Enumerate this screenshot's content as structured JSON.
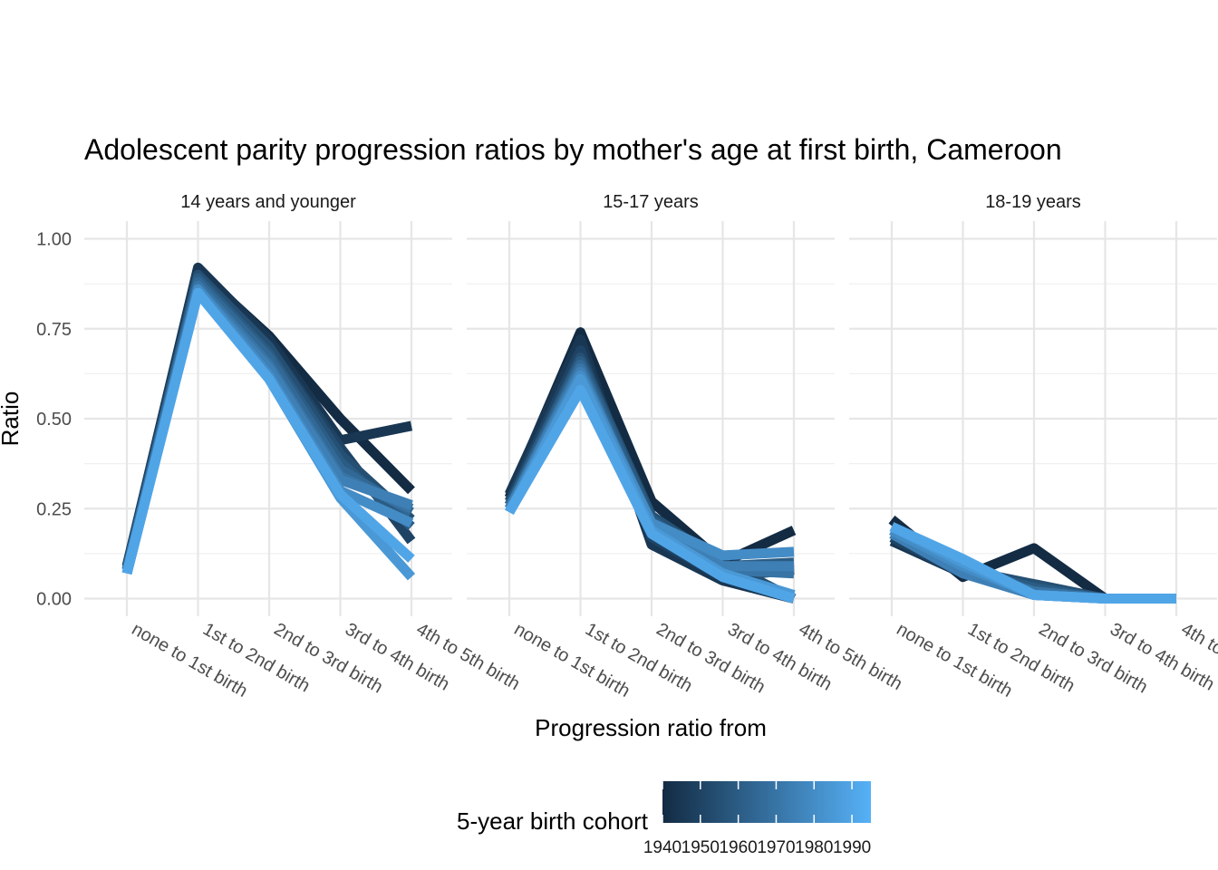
{
  "chart_data": {
    "type": "line",
    "title": "Adolescent parity progression ratios by mother's age at first birth,  Cameroon",
    "xlabel": "Progression ratio from",
    "ylabel": "Ratio",
    "ylim": [
      0,
      1
    ],
    "yticks": [
      "0.00",
      "0.25",
      "0.50",
      "0.75",
      "1.00"
    ],
    "grid": true,
    "categories": [
      "none to 1st birth",
      "1st to 2nd birth",
      "2nd to 3rd birth",
      "3rd to 4th birth",
      "4th to 5th birth"
    ],
    "legend": {
      "title": "5-year birth cohort",
      "position": "bottom",
      "type": "colorbar",
      "ticks": [
        "1940",
        "1950",
        "1960",
        "1970",
        "1980",
        "1990"
      ],
      "range": [
        1940,
        1995
      ],
      "color_low": "#132b43",
      "color_high": "#56b1f7"
    },
    "panels": [
      {
        "label": "14 years and younger",
        "series": [
          {
            "cohort": 1940,
            "values": [
              0.08,
              0.91,
              0.73,
              0.5,
              0.3
            ]
          },
          {
            "cohort": 1945,
            "values": [
              0.09,
              0.92,
              0.72,
              0.44,
              0.48
            ]
          },
          {
            "cohort": 1950,
            "values": [
              0.09,
              0.9,
              0.7,
              0.42,
              0.16
            ]
          },
          {
            "cohort": 1955,
            "values": [
              0.08,
              0.9,
              0.7,
              0.4,
              0.22
            ]
          },
          {
            "cohort": 1960,
            "values": [
              0.08,
              0.89,
              0.68,
              0.38,
              0.2
            ]
          },
          {
            "cohort": 1965,
            "values": [
              0.08,
              0.88,
              0.67,
              0.36,
              0.24
            ]
          },
          {
            "cohort": 1970,
            "values": [
              0.08,
              0.87,
              0.65,
              0.34,
              0.25
            ]
          },
          {
            "cohort": 1975,
            "values": [
              0.07,
              0.86,
              0.64,
              0.33,
              0.26
            ]
          },
          {
            "cohort": 1980,
            "values": [
              0.07,
              0.86,
              0.62,
              0.3,
              0.21
            ]
          },
          {
            "cohort": 1985,
            "values": [
              0.07,
              0.85,
              0.61,
              0.28,
              0.06
            ]
          },
          {
            "cohort": 1990,
            "values": [
              0.07,
              0.85,
              0.61,
              0.29,
              0.11
            ]
          }
        ]
      },
      {
        "label": "15-17 years",
        "series": [
          {
            "cohort": 1940,
            "values": [
              0.28,
              0.74,
              0.27,
              0.1,
              0.19
            ]
          },
          {
            "cohort": 1945,
            "values": [
              0.29,
              0.72,
              0.15,
              0.05,
              0.0
            ]
          },
          {
            "cohort": 1950,
            "values": [
              0.27,
              0.69,
              0.17,
              0.06,
              0.08
            ]
          },
          {
            "cohort": 1955,
            "values": [
              0.26,
              0.67,
              0.23,
              0.1,
              0.0
            ]
          },
          {
            "cohort": 1960,
            "values": [
              0.26,
              0.66,
              0.22,
              0.09,
              0.1
            ]
          },
          {
            "cohort": 1965,
            "values": [
              0.25,
              0.65,
              0.2,
              0.08,
              0.09
            ]
          },
          {
            "cohort": 1970,
            "values": [
              0.25,
              0.64,
              0.19,
              0.08,
              0.07
            ]
          },
          {
            "cohort": 1975,
            "values": [
              0.25,
              0.63,
              0.2,
              0.09,
              0.09
            ]
          },
          {
            "cohort": 1980,
            "values": [
              0.24,
              0.62,
              0.21,
              0.12,
              0.13
            ]
          },
          {
            "cohort": 1985,
            "values": [
              0.24,
              0.61,
              0.19,
              0.07,
              0.01
            ]
          },
          {
            "cohort": 1990,
            "values": [
              0.24,
              0.58,
              0.18,
              0.06,
              0.0
            ]
          }
        ]
      },
      {
        "label": "18-19 years",
        "series": [
          {
            "cohort": 1940,
            "values": [
              0.22,
              0.06,
              0.14,
              0.0,
              0.0
            ]
          },
          {
            "cohort": 1945,
            "values": [
              0.16,
              0.07,
              0.03,
              0.0,
              0.0
            ]
          },
          {
            "cohort": 1950,
            "values": [
              0.17,
              0.07,
              0.04,
              0.0,
              0.0
            ]
          },
          {
            "cohort": 1955,
            "values": [
              0.18,
              0.08,
              0.04,
              0.0,
              0.0
            ]
          },
          {
            "cohort": 1960,
            "values": [
              0.19,
              0.08,
              0.03,
              0.0,
              0.0
            ]
          },
          {
            "cohort": 1965,
            "values": [
              0.19,
              0.08,
              0.02,
              0.0,
              0.0
            ]
          },
          {
            "cohort": 1970,
            "values": [
              0.19,
              0.08,
              0.02,
              0.0,
              0.0
            ]
          },
          {
            "cohort": 1975,
            "values": [
              0.18,
              0.07,
              0.01,
              0.0,
              0.0
            ]
          },
          {
            "cohort": 1980,
            "values": [
              0.19,
              0.09,
              0.01,
              0.0,
              0.0
            ]
          },
          {
            "cohort": 1985,
            "values": [
              0.2,
              0.1,
              0.01,
              0.0,
              0.0
            ]
          },
          {
            "cohort": 1990,
            "values": [
              0.2,
              0.11,
              0.01,
              0.0,
              0.0
            ]
          }
        ]
      }
    ]
  }
}
